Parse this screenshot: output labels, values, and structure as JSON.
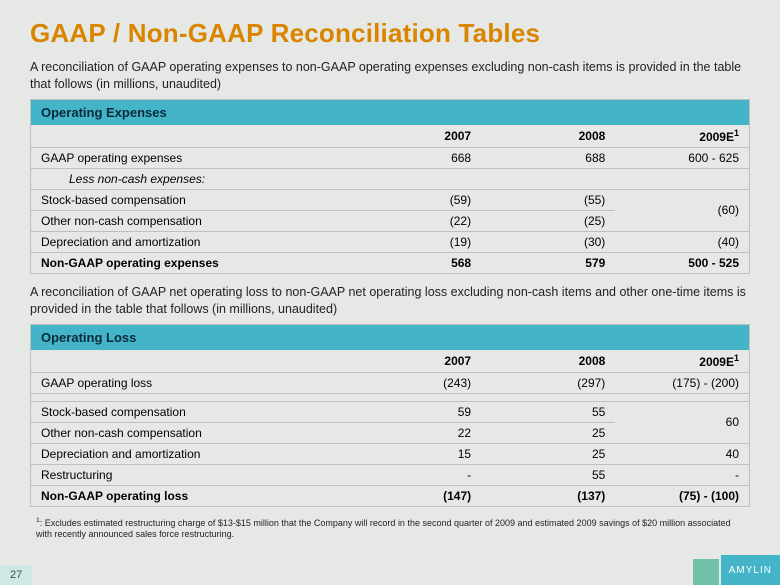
{
  "title": "GAAP / Non-GAAP Reconciliation Tables",
  "intro1": "A reconciliation of GAAP operating expenses to non-GAAP operating expenses excluding non-cash items is provided in the table that follows (in millions, unaudited)",
  "intro2": "A reconciliation of GAAP net operating loss to non-GAAP net operating loss excluding non-cash items and other one-time items is provided in the table that follows (in millions, unaudited)",
  "col_2007": "2007",
  "col_2008": "2008",
  "col_2009_pre": "2009E",
  "col_2009_sup": "1",
  "table1": {
    "header": "Operating Expenses",
    "rows": {
      "r1": {
        "label": "GAAP operating expenses",
        "y2007": "668",
        "y2008": "688",
        "y2009": "600 - 625"
      },
      "less": "Less non-cash expenses:",
      "r2": {
        "label": "Stock-based compensation",
        "y2007": "(59)",
        "y2008": "(55)",
        "merged": "(60)"
      },
      "r3": {
        "label": "Other non-cash compensation",
        "y2007": "(22)",
        "y2008": "(25)"
      },
      "r4": {
        "label": "Depreciation and amortization",
        "y2007": "(19)",
        "y2008": "(30)",
        "y2009": "(40)"
      },
      "total": {
        "label": "Non-GAAP operating expenses",
        "y2007": "568",
        "y2008": "579",
        "y2009": "500 - 525"
      }
    }
  },
  "table2": {
    "header": "Operating Loss",
    "rows": {
      "r1": {
        "label": "GAAP operating loss",
        "y2007": "(243)",
        "y2008": "(297)",
        "y2009": "(175) - (200)"
      },
      "r2": {
        "label": "Stock-based compensation",
        "y2007": "59",
        "y2008": "55",
        "merged": "60"
      },
      "r3": {
        "label": "Other non-cash compensation",
        "y2007": "22",
        "y2008": "25"
      },
      "r4": {
        "label": "Depreciation and amortization",
        "y2007": "15",
        "y2008": "25",
        "y2009": "40"
      },
      "r5": {
        "label": "Restructuring",
        "y2007": "-",
        "y2008": "55",
        "y2009": "-"
      },
      "total": {
        "label": "Non-GAAP operating loss",
        "y2007": "(147)",
        "y2008": "(137)",
        "y2009": "(75) - (100)"
      }
    }
  },
  "footnote_sup": "1",
  "footnote": ": Excludes estimated restructuring charge of $13-$15 million that the Company will record in the second quarter of 2009 and estimated 2009 savings of $20 million associated with recently announced sales force restructuring.",
  "page_number": "27",
  "logo_text": "AMYLIN",
  "colors": {
    "title": "#d98500",
    "header_bg": "#44b4c9",
    "page_bg": "#e6e8e6",
    "border": "#bfbfbf",
    "logo_sq": "#6fc1a9",
    "pagenum_bg": "#cfe8e4"
  }
}
